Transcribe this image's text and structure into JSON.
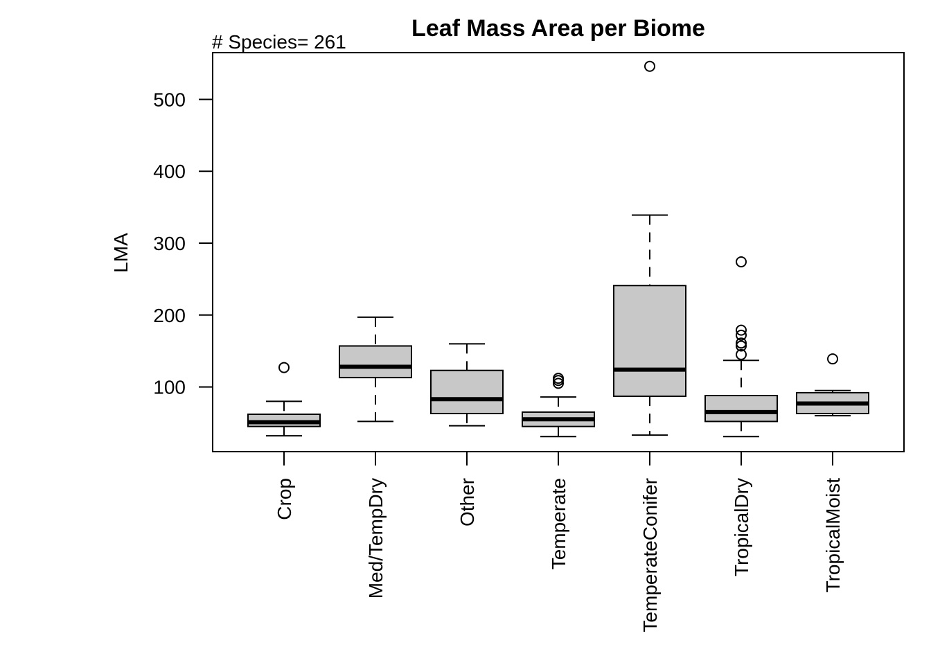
{
  "chart_data": {
    "type": "box",
    "title": "Leaf Mass Area per Biome",
    "subtitle": "# Species= 261",
    "xlabel": "",
    "ylabel": "LMA",
    "ylim": [
      10,
      565
    ],
    "yticks": [
      100,
      200,
      300,
      400,
      500
    ],
    "grid": false,
    "box_fill": "#c8c8c8",
    "categories": [
      "Crop",
      "Med/TempDry",
      "Other",
      "Temperate",
      "TemperateConifer",
      "TropicalDry",
      "TropicalMoist"
    ],
    "boxes": [
      {
        "category": "Crop",
        "whisker_low": 32,
        "q1": 45,
        "median": 51,
        "q3": 62,
        "whisker_high": 80,
        "outliers": [
          127
        ]
      },
      {
        "category": "Med/TempDry",
        "whisker_low": 52,
        "q1": 113,
        "median": 128,
        "q3": 157,
        "whisker_high": 197,
        "outliers": []
      },
      {
        "category": "Other",
        "whisker_low": 46,
        "q1": 63,
        "median": 83,
        "q3": 123,
        "whisker_high": 160,
        "outliers": []
      },
      {
        "category": "Temperate",
        "whisker_low": 31,
        "q1": 45,
        "median": 55,
        "q3": 65,
        "whisker_high": 86,
        "outliers": [
          105,
          109,
          112
        ]
      },
      {
        "category": "TemperateConifer",
        "whisker_low": 33,
        "q1": 87,
        "median": 124,
        "q3": 241,
        "whisker_high": 339,
        "outliers": [
          546
        ]
      },
      {
        "category": "TropicalDry",
        "whisker_low": 31,
        "q1": 52,
        "median": 65,
        "q3": 88,
        "whisker_high": 137,
        "outliers": [
          145,
          157,
          161,
          172,
          179,
          274
        ]
      },
      {
        "category": "TropicalMoist",
        "whisker_low": 60,
        "q1": 63,
        "median": 77,
        "q3": 92,
        "whisker_high": 95,
        "outliers": [
          139
        ]
      }
    ]
  }
}
